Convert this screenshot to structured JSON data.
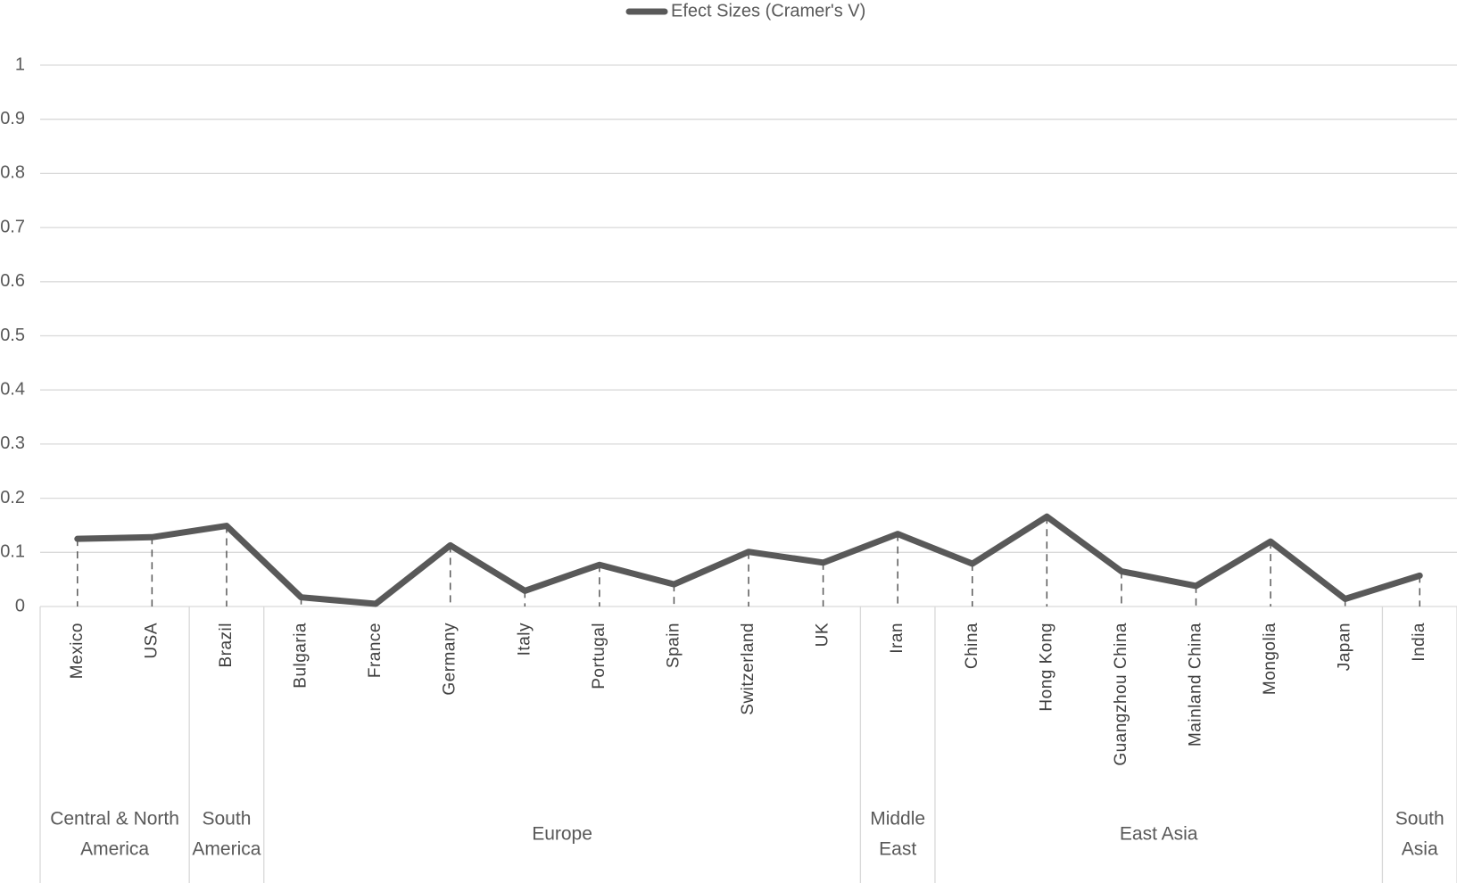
{
  "chart_data": {
    "type": "line",
    "category_groups": [
      {
        "name": [
          "Central & North",
          "America"
        ],
        "categories": [
          "Mexico",
          "USA"
        ]
      },
      {
        "name": [
          "South",
          "America"
        ],
        "categories": [
          "Brazil"
        ]
      },
      {
        "name": [
          "Europe"
        ],
        "categories": [
          "Bulgaria",
          "France",
          "Germany",
          "Italy",
          "Portugal",
          "Spain",
          "Switzerland",
          "UK"
        ]
      },
      {
        "name": [
          "Middle",
          "East"
        ],
        "categories": [
          "Iran"
        ]
      },
      {
        "name": [
          "East Asia"
        ],
        "categories": [
          "China",
          "Hong Kong",
          "Guangzhou China",
          "Mainland China",
          "Mongolia",
          "Japan"
        ]
      },
      {
        "name": [
          "South",
          "Asia"
        ],
        "categories": [
          "India"
        ]
      }
    ],
    "series": [
      {
        "name": "Efect Sizes (Cramer's V)",
        "color": "#595959",
        "values": [
          0.125,
          0.128,
          0.149,
          0.017,
          0.005,
          0.113,
          0.029,
          0.077,
          0.041,
          0.101,
          0.081,
          0.134,
          0.079,
          0.166,
          0.065,
          0.038,
          0.12,
          0.014,
          0.057
        ]
      }
    ],
    "ylim": [
      0,
      1
    ],
    "yticks": [
      0,
      0.1,
      0.2,
      0.3,
      0.4,
      0.5,
      0.6,
      0.7,
      0.8,
      0.9,
      1
    ],
    "grid": true,
    "legend": "top",
    "drop_lines": true
  }
}
